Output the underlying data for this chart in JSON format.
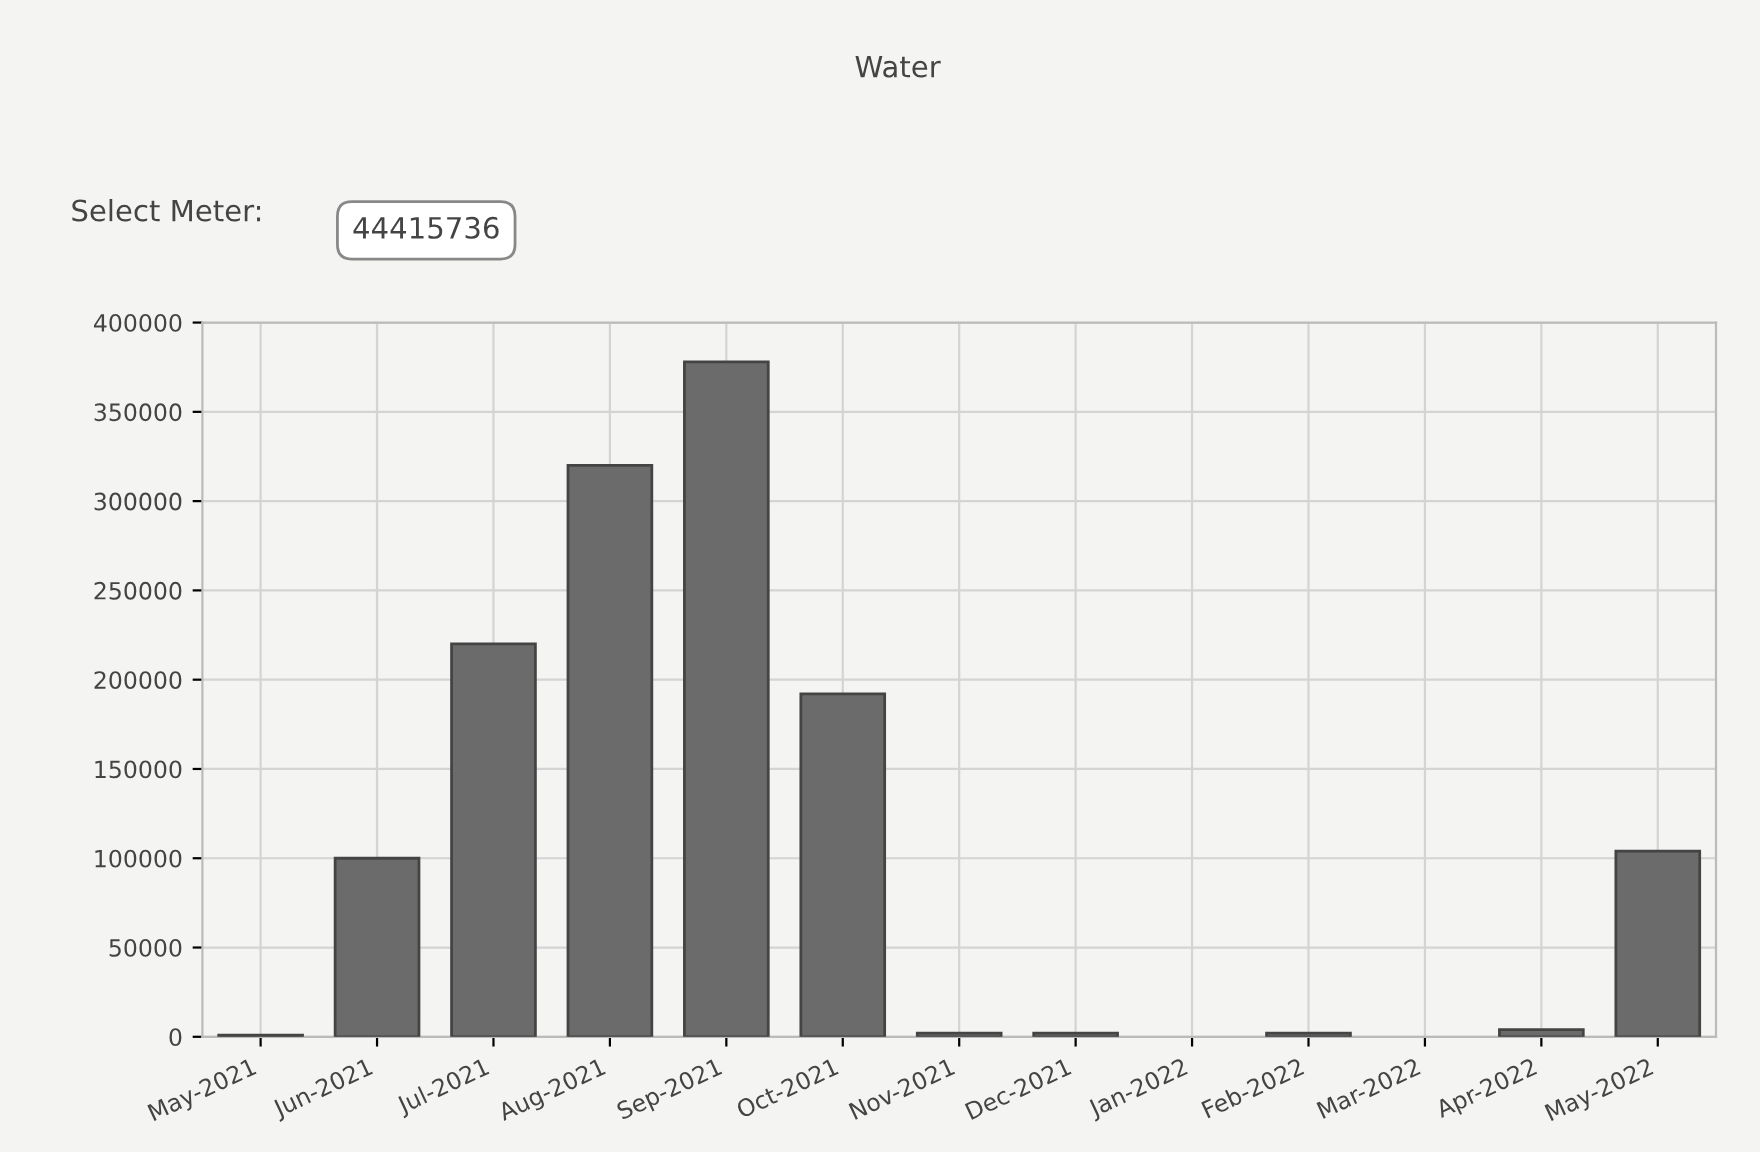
{
  "chart_data": {
    "type": "bar",
    "title": "Water",
    "annotations": [
      "Select Meter:",
      "44415736"
    ],
    "categories": [
      "May-2021",
      "Jun-2021",
      "Jul-2021",
      "Aug-2021",
      "Sep-2021",
      "Oct-2021",
      "Nov-2021",
      "Dec-2021",
      "Jan-2022",
      "Feb-2022",
      "Mar-2022",
      "Apr-2022",
      "May-2022"
    ],
    "values": [
      1000,
      100000,
      220000,
      320000,
      378000,
      192000,
      2000,
      2000,
      null,
      2000,
      null,
      4000,
      104000
    ],
    "color": "#6b6b6b",
    "ylim": [
      0,
      400000
    ],
    "yticks": [
      0,
      50000,
      100000,
      150000,
      200000,
      250000,
      300000,
      350000,
      400000
    ],
    "grid": true
  }
}
